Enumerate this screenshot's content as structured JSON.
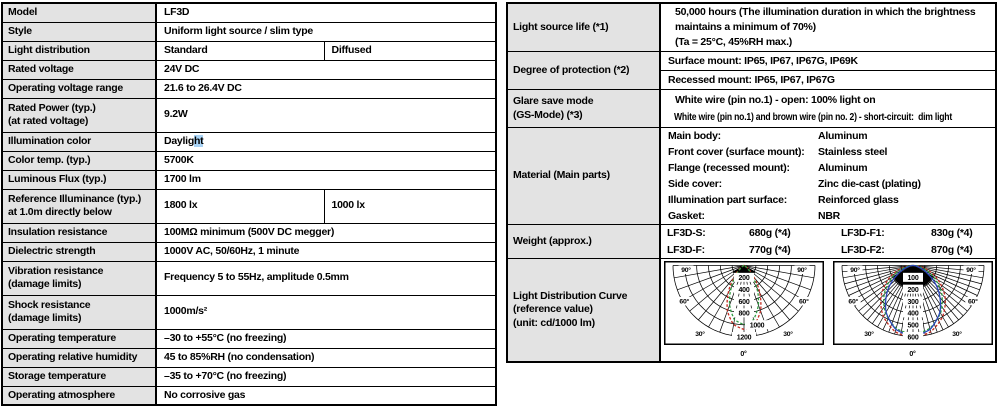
{
  "colors": {
    "border": "#000000",
    "label_cell_bg": "#e3e3e3",
    "selection_highlight": "#a9d3f5",
    "curve_red": "#c42a20",
    "curve_green": "#2f9e41",
    "curve_blue": "#2b47bb"
  },
  "left_table": {
    "rows": [
      {
        "label": [
          "Model"
        ],
        "values": [
          "LF3D"
        ]
      },
      {
        "label": [
          "Style"
        ],
        "values": [
          "Uniform light source / slim type"
        ]
      },
      {
        "label": [
          "Light distribution"
        ],
        "split": true,
        "values": [
          "Standard",
          "Diffused"
        ]
      },
      {
        "label": [
          "Rated voltage"
        ],
        "values": [
          "24V DC"
        ]
      },
      {
        "label": [
          "Operating voltage range"
        ],
        "values": [
          "21.6 to 26.4V DC"
        ]
      },
      {
        "label": [
          "Rated Power (typ.)",
          "(at rated voltage)"
        ],
        "values": [
          "9.2W"
        ]
      },
      {
        "label": [
          "Illumination color"
        ],
        "values": [
          "Daylight"
        ],
        "hl": {
          "pre": "Daylig",
          "sel": "ht",
          "post": ""
        }
      },
      {
        "label": [
          "Color temp. (typ.)"
        ],
        "values": [
          "5700K"
        ]
      },
      {
        "label": [
          "Luminous Flux (typ.)"
        ],
        "values": [
          "1700 lm"
        ]
      },
      {
        "label": [
          "Reference Illuminance (typ.)",
          "at 1.0m directly below"
        ],
        "split": true,
        "values": [
          "1800 lx",
          "1000 lx"
        ]
      },
      {
        "label": [
          "Insulation resistance"
        ],
        "values": [
          "100MΩ minimum (500V DC megger)"
        ]
      },
      {
        "label": [
          "Dielectric strength"
        ],
        "values": [
          "1000V AC, 50/60Hz, 1 minute"
        ]
      },
      {
        "label": [
          "Vibration resistance",
          "(damage limits)"
        ],
        "values": [
          "Frequency 5 to 55Hz, amplitude 0.5mm"
        ]
      },
      {
        "label": [
          "Shock resistance",
          "(damage limits)"
        ],
        "values": [
          "1000m/s²"
        ]
      },
      {
        "label": [
          "Operating temperature"
        ],
        "values": [
          "–30 to +55°C (no freezing)"
        ]
      },
      {
        "label": [
          "Operating relative humidity"
        ],
        "values": [
          "45 to 85%RH (no condensation)"
        ]
      },
      {
        "label": [
          "Storage temperature"
        ],
        "values": [
          "–35 to +70°C (no freezing)"
        ]
      },
      {
        "label": [
          "Operating atmosphere"
        ],
        "values": [
          "No corrosive gas"
        ]
      }
    ]
  },
  "right_table": {
    "rows": [
      {
        "label": [
          "Light source life (*1)"
        ],
        "lines": [
          "50,000 hours (The illumination duration in which the brightness",
          "maintains a minimum of 70%)",
          "(Ta = 25°C, 45%RH max.)"
        ]
      },
      {
        "label": [
          "Degree of protection (*2)"
        ],
        "subrows": [
          "Surface mount: IP65, IP67, IP67G, IP69K",
          "Recessed mount: IP65, IP67, IP67G"
        ]
      },
      {
        "label": [
          "Glare save mode",
          "(GS-Mode) (*3)"
        ],
        "lines": [
          "White wire (pin no.1) - open: 100% light on",
          "White wire (pin no.1) and brown wire (pin no. 2) - short-circuit:  dim light"
        ],
        "condensed": [
          1
        ]
      },
      {
        "label": [
          "Material (Main parts)"
        ],
        "pairs": [
          [
            "Main body:",
            "Aluminum"
          ],
          [
            "Front cover (surface mount):",
            "Stainless steel"
          ],
          [
            "Flange (recessed mount):",
            "Aluminum"
          ],
          [
            "Side cover:",
            "Zinc die-cast (plating)"
          ],
          [
            "Illumination part surface:",
            "Reinforced glass"
          ],
          [
            "Gasket:",
            "NBR"
          ]
        ]
      },
      {
        "label": [
          "Weight (approx.)"
        ],
        "weight": [
          [
            "LF3D-S:",
            "680g (*4)",
            "LF3D-F1:",
            "830g (*4)"
          ],
          [
            "LF3D-F:",
            "770g (*4)",
            "LF3D-F2:",
            "870g (*4)"
          ]
        ]
      },
      {
        "label": [
          "Light Distribution Curve",
          "(reference value)",
          "(unit: cd/1000 lm)"
        ],
        "charts": true
      }
    ]
  },
  "chart_data": [
    {
      "type": "polar-light-distribution",
      "name": "standard",
      "unit": "cd/1000 lm",
      "rmax": 1200,
      "radial_ticks": [
        200,
        400,
        600,
        800,
        1000,
        1200
      ],
      "angle_labels": [
        "90°",
        "60°",
        "30°",
        "0°"
      ],
      "spoke_step_deg": 10,
      "series": [
        {
          "name": "red-dashed",
          "color": "#c42a20",
          "dash": true,
          "angles_deg": [
            0,
            10,
            20,
            30,
            40,
            50,
            60,
            75,
            90
          ],
          "values": [
            1080,
            1015,
            820,
            530,
            265,
            110,
            40,
            10,
            0
          ]
        },
        {
          "name": "green-dashed",
          "color": "#2f9e41",
          "dash": true,
          "angles_deg": [
            0,
            10,
            20,
            30,
            40,
            50,
            60,
            75,
            90
          ],
          "values": [
            1000,
            930,
            710,
            430,
            195,
            70,
            22,
            5,
            0
          ]
        }
      ]
    },
    {
      "type": "polar-light-distribution",
      "name": "diffused",
      "unit": "cd/1000 lm",
      "rmax": 600,
      "radial_ticks": [
        100,
        200,
        300,
        400,
        500,
        600
      ],
      "angle_labels": [
        "90°",
        "60°",
        "30°",
        "0°"
      ],
      "spoke_step_deg": 5,
      "series": [
        {
          "name": "red-dashed",
          "color": "#c42a20",
          "dash": true,
          "angles_deg": [
            0,
            15,
            30,
            45,
            60,
            75,
            90
          ],
          "values": [
            615,
            580,
            500,
            385,
            245,
            115,
            5
          ]
        },
        {
          "name": "green-dashed",
          "color": "#2f9e41",
          "dash": true,
          "angles_deg": [
            0,
            15,
            30,
            45,
            60,
            75,
            90
          ],
          "values": [
            585,
            550,
            465,
            345,
            205,
            85,
            0
          ]
        },
        {
          "name": "blue-solid",
          "color": "#2b47bb",
          "dash": false,
          "angles_deg": [
            0,
            15,
            30,
            45,
            60,
            75,
            90
          ],
          "values": [
            600,
            560,
            455,
            305,
            150,
            40,
            0
          ]
        }
      ]
    }
  ]
}
